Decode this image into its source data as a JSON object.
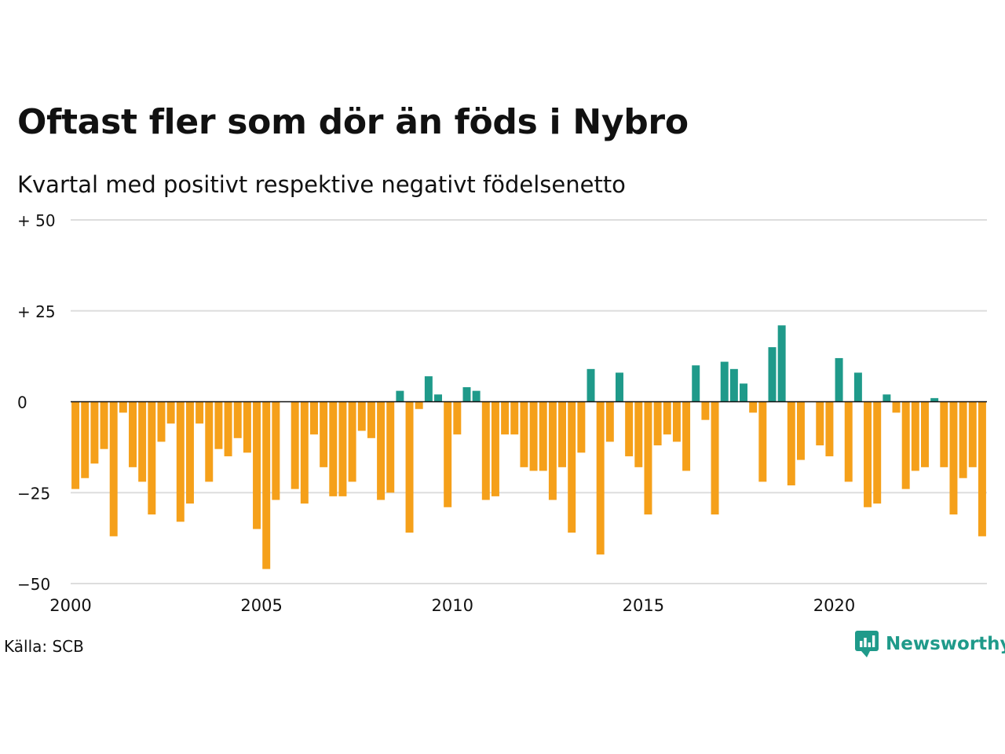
{
  "title": "Oftast fler som dör än föds i Nybro",
  "subtitle": "Kvartal med positivt respektive negativt födelsenetto",
  "source": "Källa: SCB",
  "brand": {
    "name": "Newsworthy",
    "icon": "newsworthy-logo-icon",
    "color": "#1f9a8a"
  },
  "colors": {
    "positive": "#1f9a8a",
    "negative": "#f5a01a",
    "grid": "#dddddd",
    "zero": "#111111"
  },
  "chart_data": {
    "type": "bar",
    "title": "Oftast fler som dör än föds i Nybro",
    "subtitle": "Kvartal med positivt respektive negativt födelsenetto",
    "xlabel": "",
    "ylabel": "",
    "xlim": [
      2000,
      2024
    ],
    "ylim": [
      -50,
      50
    ],
    "grid": true,
    "legend": "none",
    "x_ticks": [
      2000,
      2005,
      2010,
      2015,
      2020
    ],
    "x_tick_labels": [
      "2000",
      "2005",
      "2010",
      "2015",
      "2020"
    ],
    "y_ticks": [
      50,
      25,
      0,
      -25,
      -50
    ],
    "y_tick_labels": [
      "+ 50",
      "+ 25",
      "0",
      "−25",
      "−50"
    ],
    "start_year": 2000,
    "periods_per_year": 4,
    "values": [
      -24,
      -21,
      -17,
      -13,
      -37,
      -3,
      -18,
      -22,
      -31,
      -11,
      -6,
      -33,
      -28,
      -6,
      -22,
      -13,
      -15,
      -10,
      -14,
      -35,
      -46,
      -27,
      0,
      -24,
      -28,
      -9,
      -18,
      -26,
      -26,
      -22,
      -8,
      -10,
      -27,
      -25,
      3,
      -36,
      -2,
      7,
      2,
      -29,
      -9,
      4,
      3,
      -27,
      -26,
      -9,
      -9,
      -18,
      -19,
      -19,
      -27,
      -18,
      -36,
      -14,
      9,
      -42,
      -11,
      8,
      -15,
      -18,
      -31,
      -12,
      -9,
      -11,
      -19,
      10,
      -5,
      -31,
      11,
      9,
      5,
      -3,
      -22,
      15,
      21,
      -23,
      -16,
      0,
      -12,
      -15,
      12,
      -22,
      8,
      -29,
      -28,
      2,
      -3,
      -24,
      -19,
      -18,
      1,
      -18,
      -31,
      -21,
      -18,
      -37
    ]
  }
}
